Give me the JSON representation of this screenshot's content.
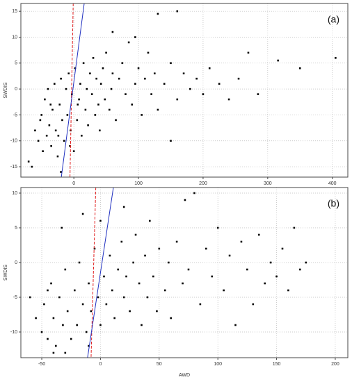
{
  "chart_data": [
    {
      "type": "scatter",
      "ylabel": "SWDIS",
      "annotation": "(a)",
      "xlim": [
        -82,
        424
      ],
      "ylim": [
        -17,
        16.5
      ],
      "xticks": [
        0,
        100,
        200,
        300,
        400
      ],
      "yticks": [
        -15,
        -10,
        -5,
        0,
        5,
        10,
        15
      ],
      "grid": true,
      "series": [
        {
          "color": "#000000",
          "x": [
            -60,
            -55,
            -50,
            -48,
            -45,
            -42,
            -40,
            -38,
            -35,
            -33,
            -30,
            -28,
            -25,
            -22,
            -20,
            -18,
            -15,
            -12,
            -10,
            -8,
            -5,
            -3,
            0,
            2,
            5,
            8,
            10,
            12,
            15,
            18,
            20,
            22,
            25,
            28,
            30,
            33,
            35,
            38,
            40,
            42,
            45,
            48,
            50,
            55,
            58,
            60,
            65,
            70,
            75,
            80,
            85,
            90,
            95,
            100,
            105,
            110,
            115,
            120,
            125,
            130,
            140,
            150,
            160,
            170,
            180,
            190,
            200,
            210,
            225,
            240,
            255,
            270,
            285,
            316,
            350,
            405,
            160,
            130,
            -70,
            -65,
            -20,
            60,
            95,
            150,
            -52,
            -36,
            -24,
            -6,
            6
          ],
          "values": [
            -8,
            -10,
            -5,
            -12,
            -2,
            -9,
            0,
            -7,
            -11,
            -4,
            1,
            -8,
            -13,
            -3,
            2,
            -6,
            -10,
            0,
            -5,
            3,
            -8,
            -1,
            -12,
            4,
            -6,
            -2,
            1,
            -9,
            5,
            -4,
            0,
            -7,
            3,
            -1,
            6,
            -5,
            2,
            -3,
            -8,
            1,
            4,
            -2,
            7,
            -4,
            0,
            3,
            -6,
            2,
            5,
            -1,
            9,
            -3,
            1,
            4,
            -5,
            2,
            7,
            -1,
            3,
            -4,
            1,
            5,
            -2,
            3,
            0,
            2,
            -1,
            4,
            1,
            -2,
            2,
            7,
            -1,
            5.5,
            4,
            6,
            15,
            14.5,
            -14,
            -15,
            -16,
            11,
            10,
            -10,
            -6,
            -3,
            -9,
            -11,
            -3
          ]
        }
      ],
      "lines": [
        {
          "color": "#e02020",
          "dashed": true,
          "x": [
            -1,
            -6
          ],
          "values": [
            16.5,
            -17
          ]
        },
        {
          "color": "#2030c0",
          "dashed": false,
          "x": [
            -19.4,
            16
          ],
          "values": [
            -17,
            16.5
          ]
        }
      ]
    },
    {
      "type": "scatter",
      "ylabel": "SWDIS",
      "xlabel": "AWD",
      "annotation": "(b)",
      "xlim": [
        -67.8,
        210.7
      ],
      "ylim": [
        -13.7,
        10.8
      ],
      "xticks": [
        -50,
        0,
        50,
        100,
        150,
        200
      ],
      "yticks": [
        -10,
        -5,
        0,
        5,
        10
      ],
      "grid": true,
      "series": [
        {
          "color": "#000000",
          "x": [
            -55,
            -50,
            -48,
            -45,
            -42,
            -40,
            -38,
            -35,
            -32,
            -30,
            -28,
            -25,
            -22,
            -20,
            -18,
            -15,
            -12,
            -10,
            -8,
            -5,
            -2,
            0,
            3,
            5,
            8,
            10,
            12,
            15,
            18,
            20,
            22,
            25,
            28,
            30,
            33,
            35,
            38,
            40,
            42,
            45,
            48,
            50,
            55,
            58,
            60,
            65,
            70,
            72,
            75,
            80,
            85,
            90,
            95,
            100,
            105,
            110,
            115,
            120,
            125,
            130,
            135,
            140,
            145,
            150,
            155,
            160,
            165,
            170,
            175,
            -60,
            -40,
            -33,
            -15,
            -10,
            0,
            20,
            -30,
            -45
          ],
          "values": [
            -8,
            -10,
            -6,
            -11,
            -3,
            -8,
            -12,
            -5,
            -9,
            -1,
            -7,
            -11,
            -4,
            -9,
            0,
            -6,
            -10,
            -3,
            -7,
            2,
            -5,
            -9,
            -2,
            -6,
            1,
            -4,
            -8,
            -1,
            3,
            -5,
            -2,
            -7,
            0,
            4,
            -3,
            -9,
            1,
            -5,
            6,
            -2,
            -7,
            2,
            -4,
            0,
            -8,
            3,
            -3,
            9,
            -1,
            10,
            -6,
            2,
            -2,
            5,
            -4,
            1,
            -9,
            3,
            -1,
            -6,
            4,
            -3,
            0,
            -2,
            2,
            -4,
            5,
            -1,
            0,
            -5,
            -13,
            5,
            7,
            -12,
            6,
            8,
            -13,
            -4
          ]
        }
      ],
      "lines": [
        {
          "color": "#e02020",
          "dashed": true,
          "x": [
            -4,
            -8
          ],
          "values": [
            10.8,
            -13.7
          ]
        },
        {
          "color": "#2030c0",
          "dashed": false,
          "x": [
            -11,
            11
          ],
          "values": [
            -13.7,
            10.8
          ]
        }
      ]
    }
  ]
}
